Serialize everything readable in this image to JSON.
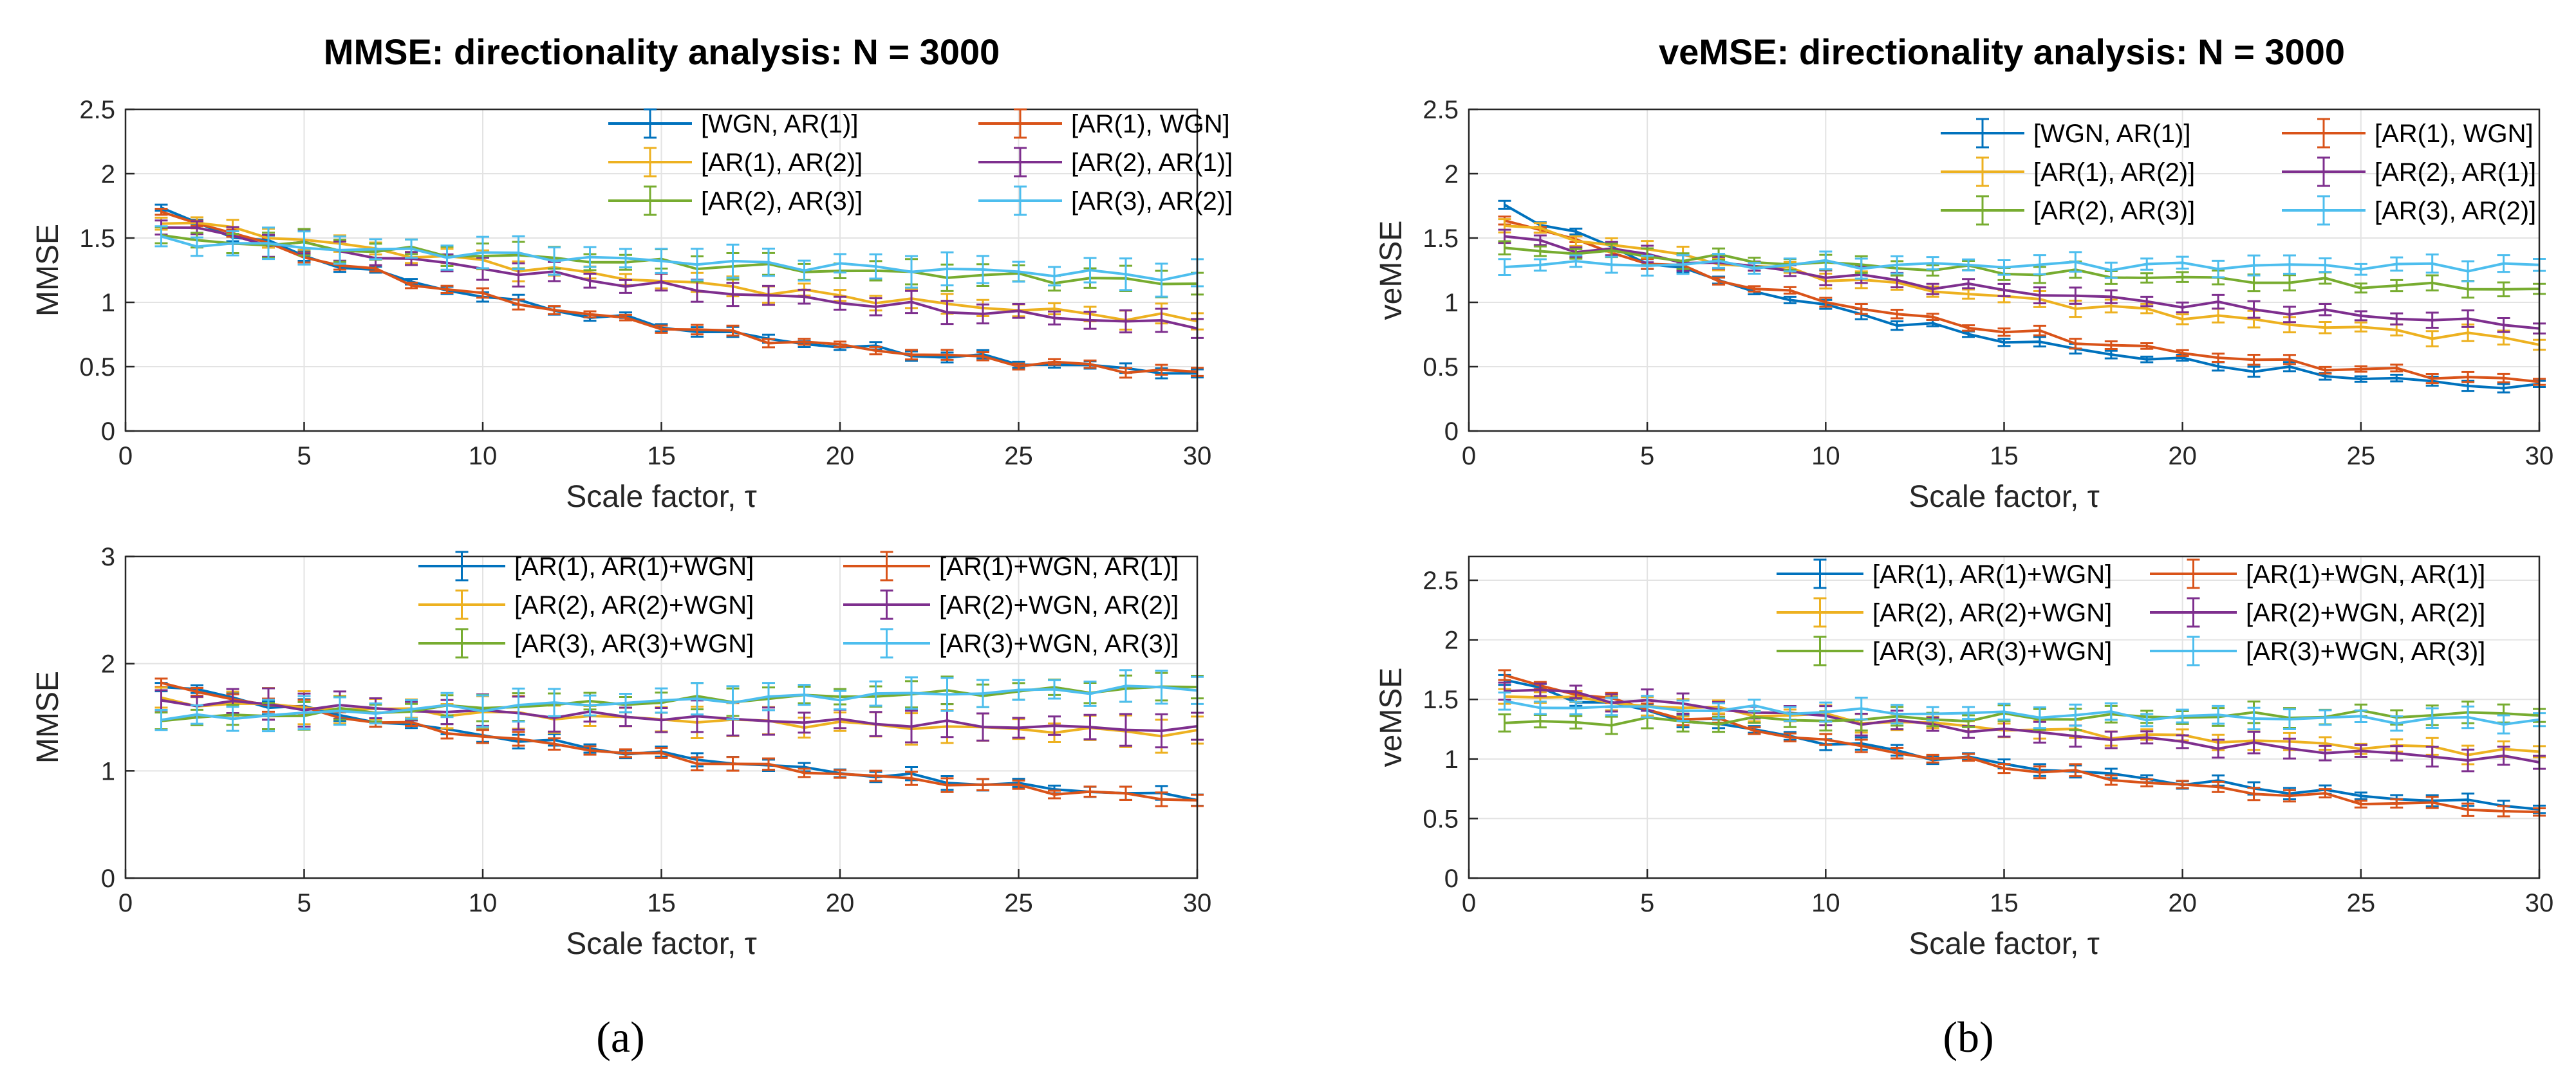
{
  "colors": {
    "blue": "#0072BD",
    "orange": "#D95319",
    "yellow": "#EDB120",
    "purple": "#7E2F8E",
    "green": "#77AC30",
    "cyan": "#4DBEEE"
  },
  "captions": [
    "(a)",
    "(b)"
  ],
  "chart_data": [
    {
      "type": "line",
      "id": "mmse_top",
      "title": "MMSE: directionality analysis: N = 3000",
      "xlabel": "Scale factor, τ",
      "ylabel": "MMSE",
      "xlim": [
        0,
        30
      ],
      "ylim": [
        0,
        2.5
      ],
      "xticks": [
        0,
        5,
        10,
        15,
        20,
        25,
        30
      ],
      "yticks": [
        0,
        0.5,
        1,
        1.5,
        2,
        2.5
      ],
      "ytick_labels": [
        "0",
        "0.5",
        "1",
        "1.5",
        "2",
        "2.5"
      ],
      "grid": true,
      "legend_position": "top-right",
      "error_bars": true,
      "series": [
        {
          "name": "[WGN, AR(1)]",
          "color": "blue",
          "start": 1.72,
          "end": 0.45,
          "k": 2.2,
          "err": 0.03
        },
        {
          "name": "[AR(1), WGN]",
          "color": "orange",
          "start": 1.72,
          "end": 0.45,
          "k": 2.2,
          "err": 0.03
        },
        {
          "name": "[AR(1), AR(2)]",
          "color": "yellow",
          "start": 1.65,
          "end": 0.86,
          "k": 1.4,
          "err": 0.06
        },
        {
          "name": "[AR(2), AR(1)]",
          "color": "purple",
          "start": 1.6,
          "end": 0.82,
          "k": 1.4,
          "err": 0.07
        },
        {
          "name": "[AR(2), AR(3)]",
          "color": "green",
          "start": 1.5,
          "end": 1.15,
          "k": 1.0,
          "err": 0.08
        },
        {
          "name": "[AR(3), AR(2)]",
          "color": "cyan",
          "start": 1.48,
          "end": 1.2,
          "k": 1.0,
          "err": 0.1
        }
      ]
    },
    {
      "type": "line",
      "id": "mmse_bottom",
      "title": "",
      "xlabel": "Scale factor, τ",
      "ylabel": "MMSE",
      "xlim": [
        0,
        30
      ],
      "ylim": [
        0,
        3
      ],
      "xticks": [
        0,
        5,
        10,
        15,
        20,
        25,
        30
      ],
      "yticks": [
        0,
        1,
        2,
        3
      ],
      "ytick_labels": [
        "0",
        "1",
        "2",
        "3"
      ],
      "grid": true,
      "legend_position": "top-right",
      "error_bars": true,
      "series": [
        {
          "name": "[AR(1), AR(1)+WGN]",
          "color": "blue",
          "start": 1.8,
          "end": 0.75,
          "k": 1.5,
          "err": 0.05
        },
        {
          "name": "[AR(1)+WGN, AR(1)]",
          "color": "orange",
          "start": 1.8,
          "end": 0.73,
          "k": 1.5,
          "err": 0.05
        },
        {
          "name": "[AR(2), AR(2)+WGN]",
          "color": "yellow",
          "start": 1.65,
          "end": 1.35,
          "k": 1.0,
          "err": 0.12
        },
        {
          "name": "[AR(2)+WGN, AR(2)]",
          "color": "purple",
          "start": 1.65,
          "end": 1.38,
          "k": 1.0,
          "err": 0.12
        },
        {
          "name": "[AR(3), AR(3)+WGN]",
          "color": "green",
          "start": 1.48,
          "end": 1.78,
          "k": 1.0,
          "err": 0.1
        },
        {
          "name": "[AR(3)+WGN, AR(3)]",
          "color": "cyan",
          "start": 1.48,
          "end": 1.78,
          "k": 1.0,
          "err": 0.12
        }
      ]
    },
    {
      "type": "line",
      "id": "vemse_top",
      "title": "veMSE: directionality analysis: N = 3000",
      "xlabel": "Scale factor, τ",
      "ylabel": "veMSE",
      "xlim": [
        0,
        30
      ],
      "ylim": [
        0,
        2.5
      ],
      "xticks": [
        0,
        5,
        10,
        15,
        20,
        25,
        30
      ],
      "yticks": [
        0,
        0.5,
        1,
        1.5,
        2,
        2.5
      ],
      "ytick_labels": [
        "0",
        "0.5",
        "1",
        "1.5",
        "2",
        "2.5"
      ],
      "grid": true,
      "legend_position": "top-right",
      "error_bars": true,
      "series": [
        {
          "name": "[WGN, AR(1)]",
          "color": "blue",
          "start": 1.75,
          "end": 0.33,
          "k": 2.4,
          "err": 0.03
        },
        {
          "name": "[AR(1), WGN]",
          "color": "orange",
          "start": 1.65,
          "end": 0.38,
          "k": 2.0,
          "err": 0.03
        },
        {
          "name": "[AR(1), AR(2)]",
          "color": "yellow",
          "start": 1.6,
          "end": 0.7,
          "k": 1.5,
          "err": 0.05
        },
        {
          "name": "[AR(2), AR(1)]",
          "color": "purple",
          "start": 1.5,
          "end": 0.82,
          "k": 1.3,
          "err": 0.05
        },
        {
          "name": "[AR(2), AR(3)]",
          "color": "green",
          "start": 1.42,
          "end": 1.1,
          "k": 1.0,
          "err": 0.05
        },
        {
          "name": "[AR(3), AR(2)]",
          "color": "cyan",
          "start": 1.3,
          "end": 1.28,
          "k": 1.0,
          "err": 0.06
        }
      ]
    },
    {
      "type": "line",
      "id": "vemse_bottom",
      "title": "",
      "xlabel": "Scale factor, τ",
      "ylabel": "veMSE",
      "xlim": [
        0,
        30
      ],
      "ylim": [
        0,
        2.7
      ],
      "xticks": [
        0,
        5,
        10,
        15,
        20,
        25,
        30
      ],
      "yticks": [
        0,
        0.5,
        1,
        1.5,
        2,
        2.5
      ],
      "ytick_labels": [
        "0",
        "0.5",
        "1",
        "1.5",
        "2",
        "2.5"
      ],
      "grid": true,
      "legend_position": "top-right",
      "error_bars": true,
      "series": [
        {
          "name": "[AR(1), AR(1)+WGN]",
          "color": "blue",
          "start": 1.65,
          "end": 0.6,
          "k": 1.8,
          "err": 0.04
        },
        {
          "name": "[AR(1)+WGN, AR(1)]",
          "color": "orange",
          "start": 1.7,
          "end": 0.55,
          "k": 1.8,
          "err": 0.04
        },
        {
          "name": "[AR(2), AR(2)+WGN]",
          "color": "yellow",
          "start": 1.55,
          "end": 1.05,
          "k": 1.2,
          "err": 0.06
        },
        {
          "name": "[AR(2)+WGN, AR(2)]",
          "color": "purple",
          "start": 1.6,
          "end": 0.98,
          "k": 1.2,
          "err": 0.07
        },
        {
          "name": "[AR(3), AR(3)+WGN]",
          "color": "green",
          "start": 1.3,
          "end": 1.38,
          "k": 1.0,
          "err": 0.07
        },
        {
          "name": "[AR(3)+WGN, AR(3)]",
          "color": "cyan",
          "start": 1.45,
          "end": 1.32,
          "k": 1.0,
          "err": 0.07
        }
      ]
    }
  ]
}
